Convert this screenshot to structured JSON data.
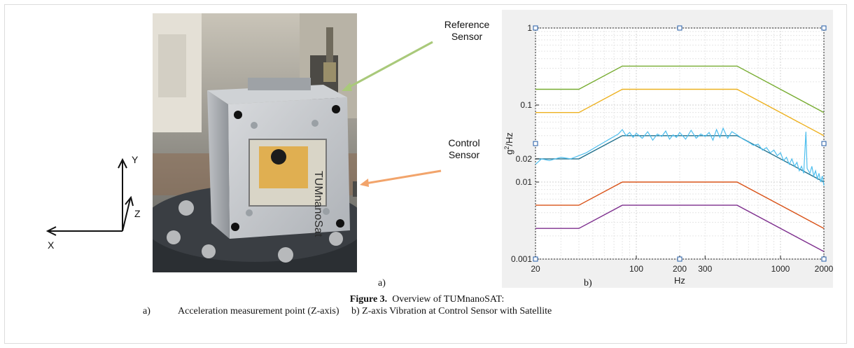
{
  "figure": {
    "label": "Figure 3.",
    "title": "Overview of TUMnanoSAT:",
    "sub_a_letter": "a)",
    "sub_a_text": "Acceleration measurement point (Z-axis)",
    "sub_b_letter": "b)",
    "sub_b_text": "Z-axis Vibration at Control Sensor with Satellite"
  },
  "panel_labels": {
    "a": "a)",
    "b": "b)"
  },
  "photo": {
    "reference_sensor_line1": "Reference",
    "reference_sensor_line2": "Sensor",
    "control_sensor_line1": "Control",
    "control_sensor_line2": "Sensor",
    "reference_arrow_color": "#a9c97a",
    "control_arrow_color": "#f2a46b",
    "panel_text": "TUMnanoSat"
  },
  "axes_triad": {
    "x": "X",
    "y": "Y",
    "z": "Z"
  },
  "chart_data": {
    "type": "line",
    "xscale": "log",
    "yscale": "log",
    "xlim": [
      20,
      2000
    ],
    "ylim": [
      0.001,
      1
    ],
    "xlabel": "Hz",
    "ylabel": "g^2/Hz",
    "ylabel_base": "g",
    "ylabel_sup": "2",
    "ylabel_rest": "/Hz",
    "x_ticks": [
      20,
      100,
      200,
      300,
      1000,
      2000
    ],
    "x_tick_labels": [
      "20",
      "100",
      "200",
      "300",
      "1000",
      "2000"
    ],
    "y_ticks": [
      0.001,
      0.01,
      0.02,
      0.1,
      1
    ],
    "y_tick_labels": [
      "0.001",
      "0.01",
      "0.02",
      "0.1",
      "1"
    ],
    "grid": true,
    "series": [
      {
        "color": "#77ac30",
        "points": [
          [
            20,
            0.16
          ],
          [
            40,
            0.16
          ],
          [
            80,
            0.32
          ],
          [
            500,
            0.32
          ],
          [
            2000,
            0.08
          ]
        ]
      },
      {
        "color": "#edb120",
        "points": [
          [
            20,
            0.08
          ],
          [
            40,
            0.08
          ],
          [
            80,
            0.16
          ],
          [
            500,
            0.16
          ],
          [
            2000,
            0.04
          ]
        ]
      },
      {
        "color": "#1f6f8b",
        "points": [
          [
            20,
            0.02
          ],
          [
            40,
            0.02
          ],
          [
            80,
            0.04
          ],
          [
            500,
            0.04
          ],
          [
            2000,
            0.01
          ]
        ]
      },
      {
        "color": "#d95319",
        "points": [
          [
            20,
            0.005
          ],
          [
            40,
            0.005
          ],
          [
            80,
            0.01
          ],
          [
            500,
            0.01
          ],
          [
            2000,
            0.0025
          ]
        ]
      },
      {
        "color": "#7e2f8e",
        "points": [
          [
            20,
            0.0025
          ],
          [
            40,
            0.0025
          ],
          [
            80,
            0.005
          ],
          [
            500,
            0.005
          ],
          [
            2000,
            0.00125
          ]
        ]
      },
      {
        "color": "#4dbeee",
        "measured": true,
        "points": [
          [
            20,
            0.017
          ],
          [
            22,
            0.02
          ],
          [
            25,
            0.019
          ],
          [
            30,
            0.021
          ],
          [
            35,
            0.02
          ],
          [
            40,
            0.022
          ],
          [
            45,
            0.024
          ],
          [
            50,
            0.027
          ],
          [
            55,
            0.03
          ],
          [
            60,
            0.033
          ],
          [
            65,
            0.036
          ],
          [
            70,
            0.039
          ],
          [
            75,
            0.042
          ],
          [
            80,
            0.048
          ],
          [
            85,
            0.04
          ],
          [
            90,
            0.044
          ],
          [
            95,
            0.038
          ],
          [
            100,
            0.043
          ],
          [
            110,
            0.037
          ],
          [
            120,
            0.045
          ],
          [
            130,
            0.035
          ],
          [
            140,
            0.042
          ],
          [
            150,
            0.039
          ],
          [
            160,
            0.046
          ],
          [
            170,
            0.036
          ],
          [
            180,
            0.041
          ],
          [
            190,
            0.038
          ],
          [
            200,
            0.044
          ],
          [
            220,
            0.036
          ],
          [
            240,
            0.047
          ],
          [
            260,
            0.037
          ],
          [
            280,
            0.042
          ],
          [
            300,
            0.039
          ],
          [
            320,
            0.044
          ],
          [
            340,
            0.035
          ],
          [
            360,
            0.048
          ],
          [
            380,
            0.038
          ],
          [
            400,
            0.05
          ],
          [
            430,
            0.037
          ],
          [
            460,
            0.045
          ],
          [
            500,
            0.041
          ],
          [
            550,
            0.036
          ],
          [
            600,
            0.033
          ],
          [
            650,
            0.03
          ],
          [
            700,
            0.031
          ],
          [
            750,
            0.026
          ],
          [
            800,
            0.028
          ],
          [
            850,
            0.024
          ],
          [
            900,
            0.026
          ],
          [
            950,
            0.022
          ],
          [
            1000,
            0.024
          ],
          [
            1050,
            0.019
          ],
          [
            1100,
            0.021
          ],
          [
            1150,
            0.017
          ],
          [
            1200,
            0.02
          ],
          [
            1250,
            0.016
          ],
          [
            1300,
            0.018
          ],
          [
            1350,
            0.014
          ],
          [
            1400,
            0.016
          ],
          [
            1450,
            0.013
          ],
          [
            1500,
            0.045
          ],
          [
            1530,
            0.015
          ],
          [
            1600,
            0.013
          ],
          [
            1650,
            0.016
          ],
          [
            1700,
            0.012
          ],
          [
            1750,
            0.014
          ],
          [
            1800,
            0.011
          ],
          [
            1850,
            0.013
          ],
          [
            1900,
            0.01
          ],
          [
            1950,
            0.012
          ],
          [
            2000,
            0.009
          ]
        ]
      }
    ]
  }
}
